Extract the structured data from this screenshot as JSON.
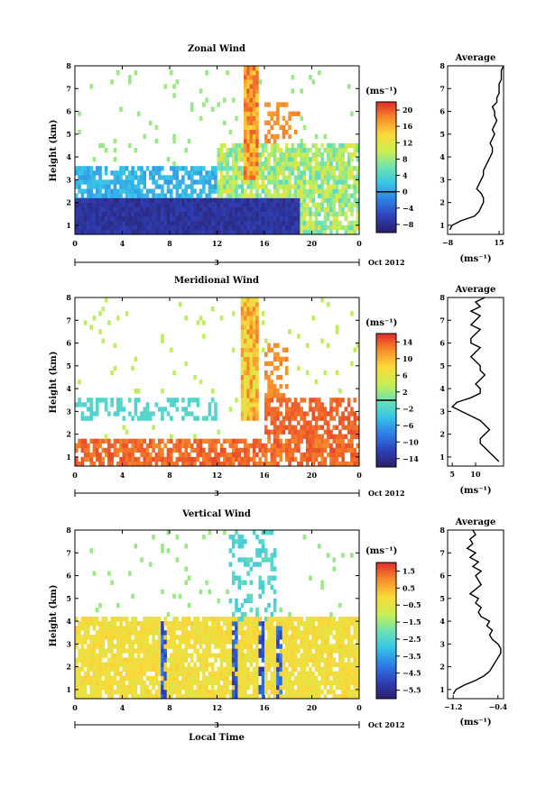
{
  "chart_data": [
    {
      "type": "heatmap",
      "title": "Zonal Wind",
      "ylabel": "Height (km)",
      "xlabel": "",
      "xlim": [
        0,
        24
      ],
      "ylim": [
        0.6,
        8
      ],
      "x_ticks": [
        "0",
        "4",
        "8",
        "12",
        "16",
        "20",
        "0"
      ],
      "y_ticks": [
        "1",
        "2",
        "3",
        "4",
        "5",
        "6",
        "7",
        "8"
      ],
      "date_label": "3",
      "month_label": "Oct 2012",
      "colorbar": {
        "unit": "(ms⁻¹)",
        "min": -10,
        "max": 22,
        "zero_line": 0,
        "ticks": [
          "20",
          "16",
          "12",
          "8",
          "4",
          "0",
          "−4",
          "−8"
        ]
      },
      "profile": {
        "title": "Average",
        "unit": "(ms⁻¹)",
        "xlim": [
          -8,
          17
        ],
        "x_ticks": [
          "−8",
          "15"
        ],
        "heights": [
          0.8,
          1.0,
          1.2,
          1.4,
          1.6,
          1.8,
          2.0,
          2.2,
          2.4,
          2.6,
          2.8,
          3.0,
          3.2,
          3.4,
          3.6,
          3.8,
          4.0,
          4.2,
          4.4,
          4.6,
          4.8,
          5.0,
          5.2,
          5.4,
          5.6,
          5.8,
          6.0,
          6.2,
          6.4,
          6.6,
          6.8,
          7.0,
          7.2,
          7.4,
          7.6,
          7.8,
          8.0
        ],
        "values": [
          -7,
          -6,
          -2,
          4,
          6,
          7,
          8,
          8,
          7,
          5,
          6,
          7,
          8,
          8,
          9,
          10,
          11,
          12,
          12,
          11,
          12,
          13,
          12,
          13,
          14,
          13,
          13,
          12,
          14,
          14,
          15,
          15,
          15,
          16,
          16,
          16,
          17
        ]
      }
    },
    {
      "type": "heatmap",
      "title": "Meridional Wind",
      "ylabel": "Height (km)",
      "xlabel": "",
      "xlim": [
        0,
        24
      ],
      "ylim": [
        0.6,
        8
      ],
      "x_ticks": [
        "0",
        "4",
        "8",
        "12",
        "16",
        "20",
        "0"
      ],
      "y_ticks": [
        "1",
        "2",
        "3",
        "4",
        "5",
        "6",
        "7",
        "8"
      ],
      "date_label": "3",
      "month_label": "Oct 2012",
      "colorbar": {
        "unit": "(ms⁻¹)",
        "min": -16,
        "max": 16,
        "zero_line": 0,
        "ticks": [
          "14",
          "10",
          "6",
          "2",
          "−2",
          "−6",
          "−10",
          "−14"
        ]
      },
      "profile": {
        "title": "Average",
        "unit": "(ms⁻¹)",
        "xlim": [
          4,
          16
        ],
        "x_ticks": [
          "5",
          "10"
        ],
        "heights": [
          0.8,
          1.0,
          1.2,
          1.4,
          1.6,
          1.8,
          2.0,
          2.2,
          2.4,
          2.6,
          2.8,
          3.0,
          3.2,
          3.4,
          3.6,
          3.8,
          4.0,
          4.2,
          4.4,
          4.6,
          4.8,
          5.0,
          5.2,
          5.4,
          5.6,
          5.8,
          6.0,
          6.2,
          6.4,
          6.6,
          6.8,
          7.0,
          7.2,
          7.4,
          7.6,
          7.8,
          8.0
        ],
        "values": [
          15,
          14,
          13,
          12,
          11,
          11,
          12,
          13,
          12,
          11,
          9,
          7,
          5,
          6,
          9,
          11,
          11,
          10,
          11,
          12,
          11,
          11,
          10,
          9,
          10,
          11,
          9,
          9,
          10,
          11,
          9,
          10,
          11,
          9,
          11,
          10,
          12
        ]
      }
    },
    {
      "type": "heatmap",
      "title": "Vertical Wind",
      "ylabel": "Height (km)",
      "xlabel": "Local Time",
      "xlim": [
        0,
        24
      ],
      "ylim": [
        0.6,
        8
      ],
      "x_ticks": [
        "0",
        "4",
        "8",
        "12",
        "16",
        "20",
        "0"
      ],
      "y_ticks": [
        "1",
        "2",
        "3",
        "4",
        "5",
        "6",
        "7",
        "8"
      ],
      "date_label": "3",
      "month_label": "Oct 2012",
      "colorbar": {
        "unit": "(ms⁻¹)",
        "min": -6,
        "max": 2,
        "ticks": [
          "1.5",
          "0.5",
          "−0.5",
          "−1.5",
          "−2.5",
          "−3.5",
          "−4.5",
          "−5.5"
        ]
      },
      "profile": {
        "title": "Average",
        "unit": "(ms⁻¹)",
        "xlim": [
          -1.3,
          -0.3
        ],
        "x_ticks": [
          "−1.2",
          "−0.4"
        ],
        "heights": [
          0.8,
          1.0,
          1.2,
          1.4,
          1.6,
          1.8,
          2.0,
          2.2,
          2.4,
          2.6,
          2.8,
          3.0,
          3.2,
          3.4,
          3.6,
          3.8,
          4.0,
          4.2,
          4.4,
          4.6,
          4.8,
          5.0,
          5.2,
          5.4,
          5.6,
          5.8,
          6.0,
          6.2,
          6.4,
          6.6,
          6.8,
          7.0,
          7.2,
          7.4,
          7.6,
          7.8,
          8.0
        ],
        "values": [
          -1.2,
          -1.15,
          -1.0,
          -0.8,
          -0.65,
          -0.55,
          -0.5,
          -0.45,
          -0.4,
          -0.35,
          -0.35,
          -0.4,
          -0.5,
          -0.55,
          -0.5,
          -0.6,
          -0.55,
          -0.7,
          -0.75,
          -0.7,
          -0.8,
          -0.75,
          -0.9,
          -0.8,
          -0.7,
          -0.75,
          -0.8,
          -0.7,
          -0.85,
          -0.75,
          -0.9,
          -0.8,
          -0.95,
          -0.85,
          -0.9,
          -0.8,
          -0.85
        ]
      }
    }
  ]
}
